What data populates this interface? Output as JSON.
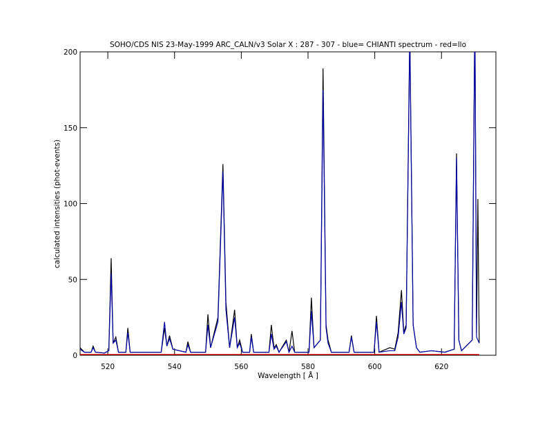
{
  "chart_data": {
    "type": "line",
    "title": "SOHO/CDS NIS  23-May-1999 ARC_CALN/v3 Solar X : 287 - 307 - blue= CHIANTI spectrum - red=llo",
    "xlabel": "Wavelength [ Å ]",
    "ylabel": "calculated intensities (phot-events)",
    "xlim": [
      511.7,
      636.3
    ],
    "ylim": [
      0,
      200
    ],
    "xticks": [
      520,
      540,
      560,
      580,
      600,
      620
    ],
    "yticks": [
      0,
      50,
      100,
      150,
      200
    ],
    "x": [
      511.7,
      513,
      515,
      515.6,
      516.3,
      519,
      520.3,
      521,
      521.6,
      522.4,
      523.2,
      525.4,
      526,
      526.7,
      529,
      536,
      537,
      537.7,
      538.5,
      539.5,
      543.4,
      544,
      544.8,
      549.3,
      550,
      550.8,
      553,
      554.5,
      555.4,
      556.5,
      558,
      558.8,
      559.5,
      560.4,
      562.5,
      563,
      563.7,
      568.3,
      569,
      569.8,
      570.5,
      571.3,
      573.5,
      574.3,
      575.2,
      576,
      580.3,
      581,
      581.8,
      583.7,
      584.5,
      585.4,
      586,
      587,
      592.3,
      593,
      593.8,
      599.8,
      600.5,
      601.3,
      604.5,
      606,
      607,
      608,
      608.7,
      609.4,
      610.5,
      611.5,
      612.5,
      613.5,
      617,
      621,
      623.8,
      624.5,
      625.2,
      626,
      629.2,
      630,
      630.5,
      630.9,
      631.3
    ],
    "series": [
      {
        "color": "#000000",
        "values": [
          5,
          2,
          2,
          6,
          2,
          1.5,
          3,
          64,
          8,
          12,
          2,
          2,
          18,
          2,
          2,
          2,
          18,
          6,
          13,
          4,
          2,
          9,
          2,
          2,
          27,
          5,
          25,
          126,
          35,
          5,
          30,
          5,
          10,
          2,
          2,
          14,
          2,
          2,
          20,
          5,
          7,
          2,
          10,
          2,
          16,
          2,
          2,
          38,
          5,
          10,
          189,
          20,
          10,
          2,
          2,
          13,
          2,
          2,
          26,
          2,
          5,
          4,
          15,
          43,
          15,
          20,
          215,
          20,
          5,
          2,
          3,
          2,
          4,
          133,
          10,
          3,
          10,
          230,
          15,
          103,
          8
        ]
      },
      {
        "color": "#0000aa",
        "values": [
          4,
          2,
          2,
          5,
          2,
          1.5,
          3,
          54,
          8,
          10,
          2,
          2,
          15,
          2,
          2,
          2,
          22,
          6,
          11,
          4,
          2,
          7,
          2,
          2,
          20,
          5,
          22,
          121,
          30,
          5,
          25,
          5,
          8,
          2,
          2,
          12,
          2,
          2,
          14,
          4,
          6,
          2,
          9,
          2,
          6,
          2,
          2,
          29,
          5,
          10,
          175,
          18,
          8,
          2,
          2,
          12,
          2,
          2,
          22,
          2,
          3,
          3,
          12,
          35,
          14,
          18,
          210,
          20,
          5,
          2,
          3,
          2,
          4,
          130,
          10,
          3,
          10,
          225,
          12,
          10,
          8
        ]
      },
      {
        "color": "#ff0000",
        "x": [
          511.7,
          631.3
        ],
        "values": [
          0.5,
          0.5
        ]
      }
    ]
  }
}
